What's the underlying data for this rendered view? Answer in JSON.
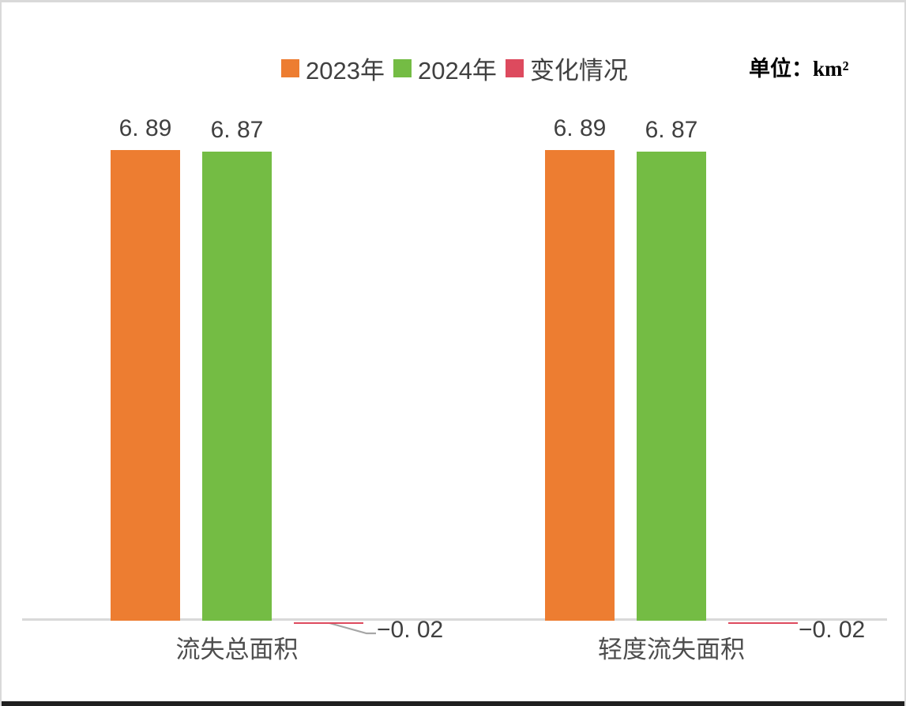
{
  "chart_data": {
    "type": "bar",
    "title": "",
    "unit_label": "单位：km²",
    "categories": [
      "流失总面积",
      "轻度流失面积"
    ],
    "series": [
      {
        "name": "2023年",
        "color": "#ED7D31",
        "values": [
          6.89,
          6.89
        ],
        "value_labels": [
          "6. 89",
          "6. 89"
        ]
      },
      {
        "name": "2024年",
        "color": "#74BC44",
        "values": [
          6.87,
          6.87
        ],
        "value_labels": [
          "6. 87",
          "6. 87"
        ]
      },
      {
        "name": "变化情况",
        "color": "#DD4A5E",
        "values": [
          -0.02,
          -0.02
        ],
        "value_labels": [
          "−0. 02",
          "−0. 02"
        ]
      }
    ],
    "xlabel": "",
    "ylabel": "",
    "ylim": [
      -0.1,
      8.0
    ],
    "grid": false,
    "legend_position": "top-center",
    "baseline": 0
  },
  "colors": {
    "background": "#FFFFFF",
    "axis_line": "#D9D9D9",
    "leader_line": "#A6A6A6",
    "value_label_text": "#404040",
    "category_label_text": "#4D4D4D",
    "unit_label_text": "#000000",
    "frame_border": "#D9D9D9",
    "bottom_edge": "#1F1F1F"
  }
}
